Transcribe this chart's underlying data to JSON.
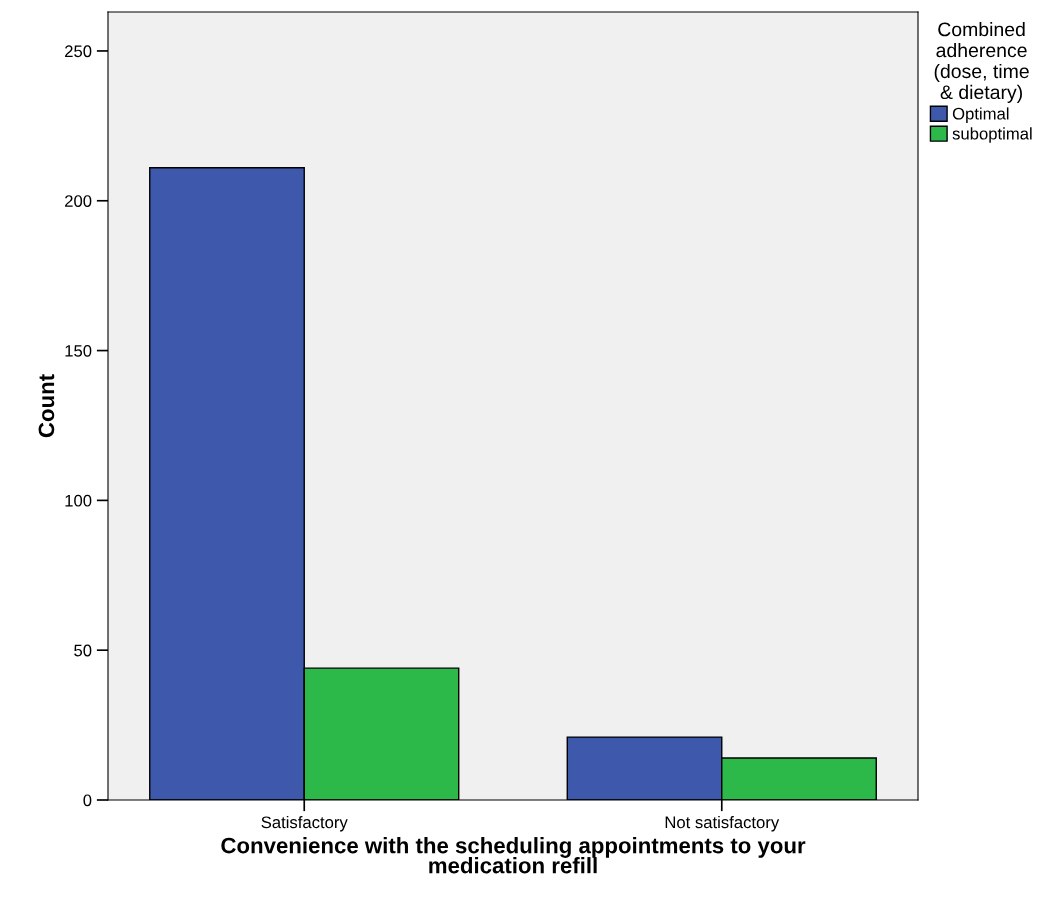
{
  "chart_data": {
    "type": "bar",
    "xlabel": "Convenience with the scheduling appointments to your\nmedication refill",
    "ylabel": "Count",
    "legend_title": "Combined\nadherence\n(dose, time\n& dietary)",
    "categories": [
      "Satisfactory",
      "Not satisfactory"
    ],
    "series": [
      {
        "name": "Optimal",
        "color": "#3e58ac",
        "values": [
          211,
          21
        ]
      },
      {
        "name": "suboptimal",
        "color": "#2db84a",
        "values": [
          44,
          14
        ]
      }
    ],
    "ylim": [
      0,
      263
    ],
    "yticks": [
      0,
      50,
      100,
      150,
      200,
      250
    ],
    "grid": false,
    "legend": "right"
  }
}
